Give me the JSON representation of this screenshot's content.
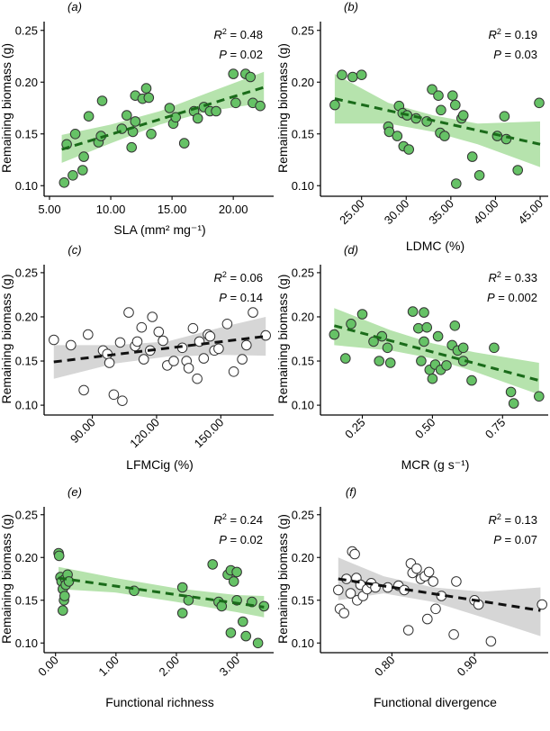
{
  "colors": {
    "green_fill": "#66c266",
    "green_band": "#b6e3ad",
    "green_line": "#1a6b1a",
    "grey_band": "#d6d6d6",
    "black_line": "#111111",
    "point_stroke": "#333333",
    "open_fill": "#ffffff"
  },
  "chart_data": [
    {
      "type": "scatter",
      "panel": "(a)",
      "xlabel": "SLA (mm² mg⁻¹)",
      "ylabel": "Remaining biomass (g)",
      "xlim": [
        5,
        23
      ],
      "ylim": [
        0.095,
        0.255
      ],
      "xticks": [
        5,
        10,
        15,
        20
      ],
      "xtick_labels": [
        "5.00",
        "10.00",
        "15.00",
        "20.00"
      ],
      "xtick_rotate": false,
      "yticks": [
        0.1,
        0.15,
        0.2,
        0.25
      ],
      "ytick_labels": [
        "0.10",
        "0.15",
        "0.20",
        "0.25"
      ],
      "r2_label": "R",
      "r2_value": "= 0.48",
      "p_label": "P",
      "p_value": "= 0.02",
      "style": "green",
      "fit": {
        "x0": 6,
        "y0": 0.135,
        "x1": 22.5,
        "y1": 0.195
      },
      "band": [
        [
          6,
          0.122,
          0.149
        ],
        [
          10,
          0.141,
          0.159
        ],
        [
          14,
          0.159,
          0.172
        ],
        [
          18,
          0.172,
          0.19
        ],
        [
          22.5,
          0.18,
          0.21
        ]
      ],
      "points": [
        [
          6.2,
          0.103
        ],
        [
          6.4,
          0.14
        ],
        [
          6.9,
          0.11
        ],
        [
          7.1,
          0.15
        ],
        [
          7.7,
          0.115
        ],
        [
          7.8,
          0.128
        ],
        [
          8.2,
          0.167
        ],
        [
          9.0,
          0.142
        ],
        [
          9.2,
          0.148
        ],
        [
          9.3,
          0.182
        ],
        [
          10.9,
          0.155
        ],
        [
          11.3,
          0.168
        ],
        [
          11.7,
          0.137
        ],
        [
          11.8,
          0.152
        ],
        [
          12.0,
          0.187
        ],
        [
          12.0,
          0.162
        ],
        [
          12.6,
          0.184
        ],
        [
          12.9,
          0.194
        ],
        [
          13.1,
          0.185
        ],
        [
          13.3,
          0.15
        ],
        [
          14.8,
          0.175
        ],
        [
          15.1,
          0.16
        ],
        [
          15.3,
          0.166
        ],
        [
          16.0,
          0.141
        ],
        [
          16.8,
          0.172
        ],
        [
          17.1,
          0.165
        ],
        [
          17.6,
          0.176
        ],
        [
          18.1,
          0.172
        ],
        [
          18.6,
          0.172
        ],
        [
          20.0,
          0.208
        ],
        [
          20.2,
          0.18
        ],
        [
          21.0,
          0.208
        ],
        [
          21.4,
          0.205
        ],
        [
          21.6,
          0.18
        ],
        [
          22.2,
          0.177
        ]
      ]
    },
    {
      "type": "scatter",
      "panel": "(b)",
      "xlabel": "LDMC (%)",
      "ylabel": "Remaining biomass (g)",
      "xlim": [
        21,
        45.5
      ],
      "ylim": [
        0.095,
        0.255
      ],
      "xticks": [
        25,
        30,
        35,
        40,
        45
      ],
      "xtick_labels": [
        "25.00",
        "30.00",
        "35.00",
        "40.00",
        "45.00"
      ],
      "xtick_rotate": true,
      "yticks": [
        0.1,
        0.15,
        0.2,
        0.25
      ],
      "ytick_labels": [
        "0.10",
        "0.15",
        "0.20",
        "0.25"
      ],
      "r2_label": "R",
      "r2_value": "= 0.19",
      "p_label": "P",
      "p_value": "= 0.03",
      "style": "green",
      "fit": {
        "x0": 22,
        "y0": 0.184,
        "x1": 45,
        "y1": 0.14
      },
      "band": [
        [
          22,
          0.16,
          0.208
        ],
        [
          28,
          0.16,
          0.18
        ],
        [
          33,
          0.152,
          0.168
        ],
        [
          38,
          0.14,
          0.16
        ],
        [
          45,
          0.118,
          0.162
        ]
      ],
      "points": [
        [
          22,
          0.178
        ],
        [
          22.8,
          0.207
        ],
        [
          24,
          0.205
        ],
        [
          25,
          0.207
        ],
        [
          28,
          0.157
        ],
        [
          28.1,
          0.152
        ],
        [
          29,
          0.148
        ],
        [
          29.2,
          0.177
        ],
        [
          29.6,
          0.17
        ],
        [
          29.7,
          0.138
        ],
        [
          30.1,
          0.168
        ],
        [
          30.3,
          0.135
        ],
        [
          31.1,
          0.165
        ],
        [
          32.3,
          0.162
        ],
        [
          32.9,
          0.193
        ],
        [
          33.6,
          0.187
        ],
        [
          33.8,
          0.151
        ],
        [
          33.9,
          0.173
        ],
        [
          34.3,
          0.148
        ],
        [
          35.2,
          0.187
        ],
        [
          35.5,
          0.178
        ],
        [
          35.6,
          0.102
        ],
        [
          36.2,
          0.165
        ],
        [
          36.4,
          0.168
        ],
        [
          37.4,
          0.128
        ],
        [
          38.2,
          0.11
        ],
        [
          40.2,
          0.148
        ],
        [
          41.0,
          0.167
        ],
        [
          41.2,
          0.145
        ],
        [
          42.5,
          0.115
        ],
        [
          44.9,
          0.18
        ]
      ]
    },
    {
      "type": "scatter",
      "panel": "(c)",
      "xlabel": "LFMCig (%)",
      "ylabel": "Remaining biomass (g)",
      "xlim": [
        70,
        173
      ],
      "ylim": [
        0.095,
        0.255
      ],
      "xticks": [
        90,
        120,
        150
      ],
      "xtick_labels": [
        "90.00",
        "120.00",
        "150.00"
      ],
      "xtick_rotate": true,
      "yticks": [
        0.1,
        0.15,
        0.2,
        0.25
      ],
      "ytick_labels": [
        "0.10",
        "0.15",
        "0.20",
        "0.25"
      ],
      "r2_label": "R",
      "r2_value": "= 0.06",
      "p_label": "P",
      "p_value": "= 0.14",
      "style": "grey",
      "fit": {
        "x0": 72,
        "y0": 0.149,
        "x1": 171,
        "y1": 0.178
      },
      "band": [
        [
          72,
          0.13,
          0.168
        ],
        [
          100,
          0.147,
          0.168
        ],
        [
          125,
          0.155,
          0.172
        ],
        [
          150,
          0.157,
          0.188
        ],
        [
          171,
          0.156,
          0.2
        ]
      ],
      "points": [
        [
          72,
          0.174
        ],
        [
          80,
          0.168
        ],
        [
          86,
          0.117
        ],
        [
          88,
          0.18
        ],
        [
          95,
          0.162
        ],
        [
          97,
          0.158
        ],
        [
          98,
          0.148
        ],
        [
          100,
          0.112
        ],
        [
          103,
          0.171
        ],
        [
          104,
          0.105
        ],
        [
          107,
          0.205
        ],
        [
          110,
          0.167
        ],
        [
          111,
          0.172
        ],
        [
          113,
          0.188
        ],
        [
          114,
          0.152
        ],
        [
          117,
          0.162
        ],
        [
          118,
          0.2
        ],
        [
          121,
          0.183
        ],
        [
          123,
          0.173
        ],
        [
          125,
          0.145
        ],
        [
          128,
          0.15
        ],
        [
          132,
          0.165
        ],
        [
          134,
          0.15
        ],
        [
          135,
          0.142
        ],
        [
          137,
          0.187
        ],
        [
          139,
          0.13
        ],
        [
          140,
          0.172
        ],
        [
          142,
          0.153
        ],
        [
          144,
          0.18
        ],
        [
          145,
          0.178
        ],
        [
          147,
          0.162
        ],
        [
          149,
          0.164
        ],
        [
          153,
          0.192
        ],
        [
          156,
          0.138
        ],
        [
          160,
          0.152
        ],
        [
          162,
          0.168
        ],
        [
          165,
          0.205
        ],
        [
          171,
          0.179
        ]
      ]
    },
    {
      "type": "scatter",
      "panel": "(d)",
      "xlabel": "MCR (g s⁻¹)",
      "ylabel": "Remaining biomass (g)",
      "xlim": [
        0.12,
        0.9
      ],
      "ylim": [
        0.095,
        0.255
      ],
      "xticks": [
        0.25,
        0.5,
        0.75
      ],
      "xtick_labels": [
        "0.25",
        "0.50",
        "0.75"
      ],
      "xtick_rotate": true,
      "yticks": [
        0.1,
        0.15,
        0.2,
        0.25
      ],
      "ytick_labels": [
        "0.10",
        "0.15",
        "0.20",
        "0.25"
      ],
      "r2_label": "R",
      "r2_value": "= 0.33",
      "p_label": "P",
      "p_value": "= 0.002",
      "style": "green",
      "fit": {
        "x0": 0.15,
        "y0": 0.19,
        "x1": 0.88,
        "y1": 0.128
      },
      "band": [
        [
          0.15,
          0.168,
          0.21
        ],
        [
          0.35,
          0.162,
          0.185
        ],
        [
          0.5,
          0.153,
          0.17
        ],
        [
          0.65,
          0.138,
          0.16
        ],
        [
          0.88,
          0.112,
          0.148
        ]
      ],
      "points": [
        [
          0.15,
          0.18
        ],
        [
          0.19,
          0.153
        ],
        [
          0.21,
          0.192
        ],
        [
          0.25,
          0.203
        ],
        [
          0.29,
          0.172
        ],
        [
          0.31,
          0.15
        ],
        [
          0.32,
          0.178
        ],
        [
          0.34,
          0.165
        ],
        [
          0.35,
          0.148
        ],
        [
          0.43,
          0.206
        ],
        [
          0.45,
          0.187
        ],
        [
          0.46,
          0.15
        ],
        [
          0.47,
          0.205
        ],
        [
          0.47,
          0.172
        ],
        [
          0.48,
          0.188
        ],
        [
          0.49,
          0.14
        ],
        [
          0.5,
          0.13
        ],
        [
          0.51,
          0.146
        ],
        [
          0.52,
          0.178
        ],
        [
          0.53,
          0.14
        ],
        [
          0.55,
          0.145
        ],
        [
          0.57,
          0.168
        ],
        [
          0.58,
          0.19
        ],
        [
          0.59,
          0.162
        ],
        [
          0.61,
          0.15
        ],
        [
          0.61,
          0.165
        ],
        [
          0.64,
          0.128
        ],
        [
          0.72,
          0.165
        ],
        [
          0.78,
          0.115
        ],
        [
          0.79,
          0.102
        ],
        [
          0.88,
          0.11
        ]
      ]
    },
    {
      "type": "scatter",
      "panel": "(e)",
      "xlabel": "Functional richness",
      "ylabel": "Remaining biomass (g)",
      "xlim": [
        -0.1,
        3.55
      ],
      "ylim": [
        0.095,
        0.255
      ],
      "xticks": [
        0,
        1,
        2,
        3
      ],
      "xtick_labels": [
        "0.00",
        "1.00",
        "2.00",
        "3.00"
      ],
      "xtick_rotate": true,
      "yticks": [
        0.1,
        0.15,
        0.2,
        0.25
      ],
      "ytick_labels": [
        "0.10",
        "0.15",
        "0.20",
        "0.25"
      ],
      "r2_label": "R",
      "r2_value": "= 0.24",
      "p_label": "P",
      "p_value": "= 0.02",
      "style": "green",
      "fit": {
        "x0": 0.05,
        "y0": 0.176,
        "x1": 3.45,
        "y1": 0.142
      },
      "band": [
        [
          0.05,
          0.163,
          0.189
        ],
        [
          1.0,
          0.159,
          0.176
        ],
        [
          2.0,
          0.148,
          0.164
        ],
        [
          3.0,
          0.136,
          0.156
        ],
        [
          3.45,
          0.13,
          0.155
        ]
      ],
      "points": [
        [
          0.05,
          0.205
        ],
        [
          0.06,
          0.202
        ],
        [
          0.08,
          0.177
        ],
        [
          0.1,
          0.172
        ],
        [
          0.12,
          0.163
        ],
        [
          0.12,
          0.138
        ],
        [
          0.14,
          0.15
        ],
        [
          0.15,
          0.155
        ],
        [
          0.16,
          0.175
        ],
        [
          0.17,
          0.168
        ],
        [
          0.2,
          0.18
        ],
        [
          0.22,
          0.172
        ],
        [
          1.3,
          0.161
        ],
        [
          2.1,
          0.165
        ],
        [
          2.1,
          0.135
        ],
        [
          2.2,
          0.15
        ],
        [
          2.6,
          0.192
        ],
        [
          2.7,
          0.148
        ],
        [
          2.75,
          0.143
        ],
        [
          2.85,
          0.18
        ],
        [
          2.9,
          0.185
        ],
        [
          2.95,
          0.172
        ],
        [
          2.9,
          0.112
        ],
        [
          3.0,
          0.15
        ],
        [
          3.0,
          0.183
        ],
        [
          3.1,
          0.125
        ],
        [
          3.15,
          0.108
        ],
        [
          3.25,
          0.148
        ],
        [
          3.35,
          0.1
        ],
        [
          3.45,
          0.143
        ]
      ]
    },
    {
      "type": "scatter",
      "panel": "(f)",
      "xlabel": "Functional divergence",
      "ylabel": "Remaining biomass (g)",
      "xlim": [
        0.72,
        0.985
      ],
      "ylim": [
        0.095,
        0.255
      ],
      "xticks": [
        0.8,
        0.9
      ],
      "xtick_labels": [
        "0.80",
        "0.90"
      ],
      "xtick_rotate": true,
      "yticks": [
        0.1,
        0.15,
        0.2,
        0.25
      ],
      "ytick_labels": [
        "0.10",
        "0.15",
        "0.20",
        "0.25"
      ],
      "r2_label": "R",
      "r2_value": "= 0.13",
      "p_label": "P",
      "p_value": "= 0.07",
      "style": "grey",
      "fit": {
        "x0": 0.735,
        "y0": 0.175,
        "x1": 0.98,
        "y1": 0.138
      },
      "band": [
        [
          0.735,
          0.15,
          0.2
        ],
        [
          0.79,
          0.158,
          0.178
        ],
        [
          0.85,
          0.148,
          0.165
        ],
        [
          0.91,
          0.13,
          0.16
        ],
        [
          0.98,
          0.108,
          0.165
        ]
      ],
      "points": [
        [
          0.735,
          0.162
        ],
        [
          0.737,
          0.14
        ],
        [
          0.742,
          0.135
        ],
        [
          0.745,
          0.175
        ],
        [
          0.75,
          0.158
        ],
        [
          0.752,
          0.207
        ],
        [
          0.755,
          0.204
        ],
        [
          0.757,
          0.176
        ],
        [
          0.758,
          0.15
        ],
        [
          0.762,
          0.168
        ],
        [
          0.765,
          0.155
        ],
        [
          0.77,
          0.163
        ],
        [
          0.775,
          0.17
        ],
        [
          0.78,
          0.165
        ],
        [
          0.795,
          0.165
        ],
        [
          0.808,
          0.167
        ],
        [
          0.815,
          0.162
        ],
        [
          0.82,
          0.115
        ],
        [
          0.823,
          0.193
        ],
        [
          0.825,
          0.182
        ],
        [
          0.83,
          0.187
        ],
        [
          0.835,
          0.175
        ],
        [
          0.84,
          0.178
        ],
        [
          0.843,
          0.128
        ],
        [
          0.845,
          0.183
        ],
        [
          0.85,
          0.172
        ],
        [
          0.853,
          0.14
        ],
        [
          0.86,
          0.155
        ],
        [
          0.875,
          0.11
        ],
        [
          0.878,
          0.172
        ],
        [
          0.9,
          0.15
        ],
        [
          0.905,
          0.145
        ],
        [
          0.92,
          0.102
        ],
        [
          0.982,
          0.145
        ]
      ]
    }
  ]
}
